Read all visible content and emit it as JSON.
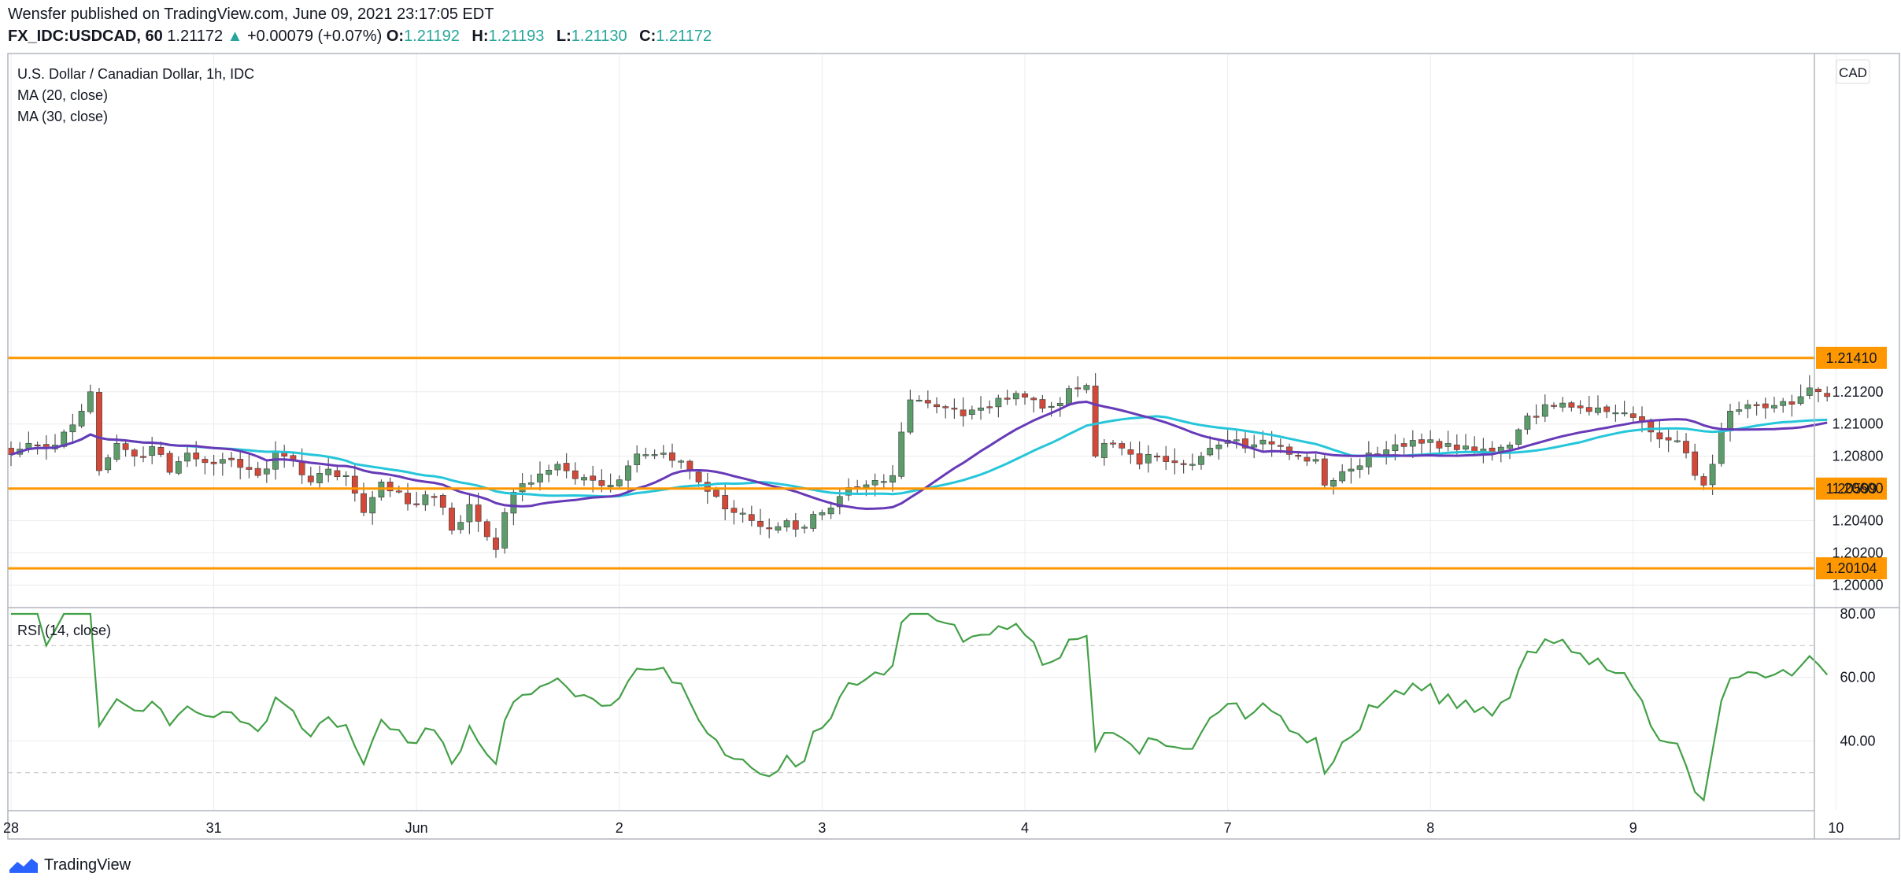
{
  "header": {
    "published_line": "Wensfer published on TradingView.com, June 09, 2021 23:17:05 EDT",
    "symbol": "FX_IDC:USDCAD, 60",
    "last_price": "1.21172",
    "change_arrow": "▲",
    "change": "+0.00079 (+0.07%)",
    "o_label": "O:",
    "o_value": "1.21192",
    "h_label": "H:",
    "h_value": "1.21193",
    "l_label": "L:",
    "l_value": "1.21130",
    "c_label": "C:",
    "c_value": "1.21172"
  },
  "legend": {
    "title": "U.S. Dollar / Canadian Dollar, 1h, IDC",
    "ma20": "MA (20, close)",
    "ma30": "MA (30, close)",
    "rsi": "RSI (14, close)",
    "currency": "CAD"
  },
  "brand": {
    "name": "TradingView"
  },
  "colors": {
    "up": "#5b9c6a",
    "down": "#d2493a",
    "ma20": "#673ab7",
    "ma30": "#26c6da",
    "level": "#ff9800",
    "rsi": "#43a047",
    "grid": "#ececec",
    "text": "#131722"
  },
  "chart_data": [
    {
      "type": "candlestick",
      "title": "U.S. Dollar / Canadian Dollar, 1h, IDC",
      "ylim": [
        1.1986,
        1.233
      ],
      "y_ticks": [
        "1.20000",
        "1.20200",
        "1.20400",
        "1.20600",
        "1.20800",
        "1.21000",
        "1.21200"
      ],
      "x_ticks": [
        "28",
        "31",
        "Jun",
        "2",
        "3",
        "4",
        "7",
        "8",
        "9",
        "10"
      ],
      "x_tick_index": [
        0,
        23,
        46,
        69,
        92,
        115,
        138,
        161,
        184,
        207
      ],
      "horizontal_levels": [
        "1.21410",
        "1.20599",
        "1.20104"
      ],
      "series_names": [
        "MA (20, close)",
        "MA (30, close)"
      ],
      "close_anchors": [
        [
          0,
          1.2081
        ],
        [
          2,
          1.2088
        ],
        [
          4,
          1.2085
        ],
        [
          6,
          1.2095
        ],
        [
          8,
          1.2108
        ],
        [
          9,
          1.212
        ],
        [
          10,
          1.2071
        ],
        [
          12,
          1.2088
        ],
        [
          14,
          1.208
        ],
        [
          16,
          1.2086
        ],
        [
          18,
          1.207
        ],
        [
          20,
          1.2082
        ],
        [
          22,
          1.2076
        ],
        [
          24,
          1.2078
        ],
        [
          26,
          1.2073
        ],
        [
          28,
          1.2068
        ],
        [
          30,
          1.2083
        ],
        [
          32,
          1.2077
        ],
        [
          34,
          1.2064
        ],
        [
          36,
          1.2072
        ],
        [
          38,
          1.2068
        ],
        [
          40,
          1.2045
        ],
        [
          42,
          1.2064
        ],
        [
          44,
          1.2058
        ],
        [
          46,
          1.205
        ],
        [
          48,
          1.2055
        ],
        [
          50,
          1.2034
        ],
        [
          52,
          1.205
        ],
        [
          54,
          1.203
        ],
        [
          55,
          1.2022
        ],
        [
          56,
          1.2045
        ],
        [
          58,
          1.2063
        ],
        [
          60,
          1.2069
        ],
        [
          62,
          1.2075
        ],
        [
          64,
          1.2066
        ],
        [
          66,
          1.2065
        ],
        [
          68,
          1.2062
        ],
        [
          70,
          1.2074
        ],
        [
          72,
          1.2081
        ],
        [
          74,
          1.2082
        ],
        [
          76,
          1.2077
        ],
        [
          78,
          1.2064
        ],
        [
          80,
          1.2055
        ],
        [
          82,
          1.2045
        ],
        [
          84,
          1.204
        ],
        [
          86,
          1.2035
        ],
        [
          88,
          1.204
        ],
        [
          90,
          1.2036
        ],
        [
          92,
          1.2045
        ],
        [
          94,
          1.2055
        ],
        [
          96,
          1.206
        ],
        [
          98,
          1.2065
        ],
        [
          100,
          1.2068
        ],
        [
          101,
          1.2095
        ],
        [
          102,
          1.2115
        ],
        [
          104,
          1.2113
        ],
        [
          106,
          1.211
        ],
        [
          108,
          1.2105
        ],
        [
          110,
          1.211
        ],
        [
          112,
          1.2116
        ],
        [
          114,
          1.2119
        ],
        [
          116,
          1.2115
        ],
        [
          118,
          1.2111
        ],
        [
          120,
          1.2122
        ],
        [
          122,
          1.2124
        ],
        [
          123,
          1.208
        ],
        [
          124,
          1.2088
        ],
        [
          126,
          1.2085
        ],
        [
          128,
          1.2075
        ],
        [
          130,
          1.208
        ],
        [
          132,
          1.2076
        ],
        [
          134,
          1.2075
        ],
        [
          136,
          1.2085
        ],
        [
          138,
          1.209
        ],
        [
          140,
          1.2085
        ],
        [
          142,
          1.209
        ],
        [
          144,
          1.2086
        ],
        [
          146,
          1.208
        ],
        [
          148,
          1.2078
        ],
        [
          149,
          1.2062
        ],
        [
          150,
          1.2065
        ],
        [
          152,
          1.2072
        ],
        [
          154,
          1.2082
        ],
        [
          156,
          1.2084
        ],
        [
          158,
          1.2086
        ],
        [
          160,
          1.2088
        ],
        [
          162,
          1.2085
        ],
        [
          164,
          1.2084
        ],
        [
          166,
          1.2083
        ],
        [
          168,
          1.2082
        ],
        [
          170,
          1.2087
        ],
        [
          172,
          1.2105
        ],
        [
          174,
          1.2112
        ],
        [
          176,
          1.2113
        ],
        [
          178,
          1.211
        ],
        [
          180,
          1.211
        ],
        [
          182,
          1.2107
        ],
        [
          184,
          1.2104
        ],
        [
          186,
          1.2095
        ],
        [
          188,
          1.209
        ],
        [
          190,
          1.2082
        ],
        [
          192,
          1.2062
        ],
        [
          193,
          1.2075
        ],
        [
          194,
          1.2095
        ],
        [
          195,
          1.2108
        ],
        [
          197,
          1.2112
        ],
        [
          199,
          1.211
        ],
        [
          201,
          1.2114
        ],
        [
          203,
          1.2117
        ],
        [
          205,
          1.212
        ],
        [
          206,
          1.2117
        ]
      ],
      "candle_count": 207
    },
    {
      "type": "line",
      "title": "RSI (14, close)",
      "ylim": [
        20,
        80
      ],
      "y_ticks": [
        "80.00",
        "60.00",
        "40.00"
      ],
      "dashed_levels": [
        70,
        30
      ],
      "series_names": [
        "RSI (14, close)"
      ]
    }
  ]
}
